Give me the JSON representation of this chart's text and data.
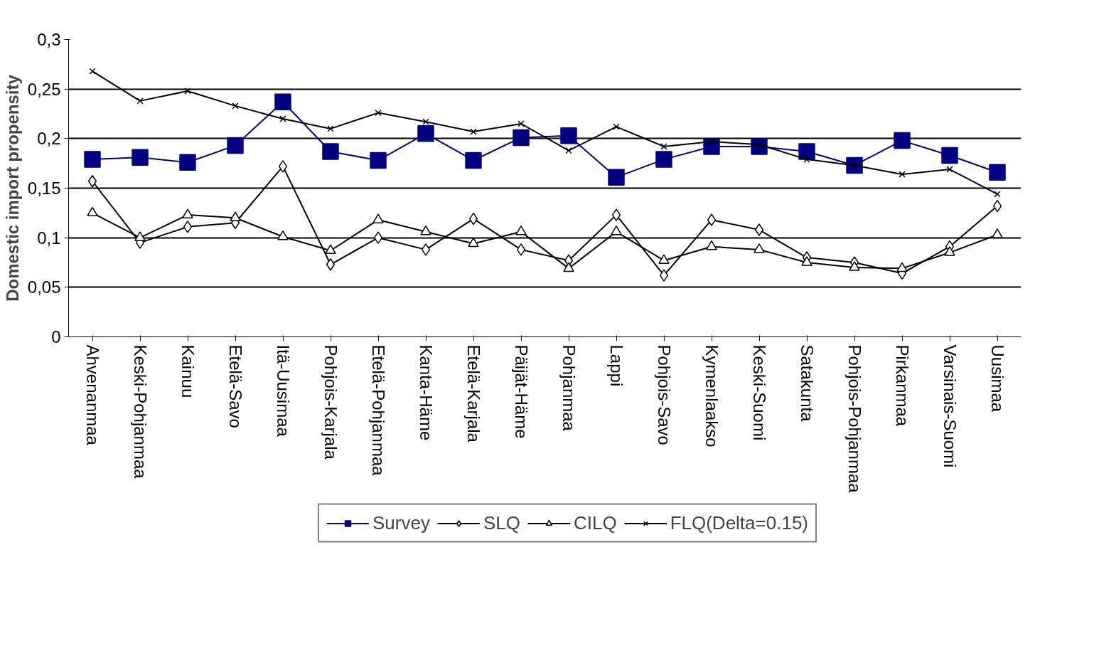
{
  "chart_data": {
    "type": "line",
    "ylabel": "Domestic import propensity",
    "categories": [
      "Ahvenanmaa",
      "Keski-Pohjanmaa",
      "Kainuu",
      "Etelä-Savo",
      "Itä-Uusimaa",
      "Pohjois-Karjala",
      "Etelä-Pohjanmaa",
      "Kanta-Häme",
      "Etelä-Karjala",
      "Päijät-Häme",
      "Pohjanmaa",
      "Lappi",
      "Pohjois-Savo",
      "Kymenlaakso",
      "Keski-Suomi",
      "Satakunta",
      "Pohjois-Pohjanmaa",
      "Pirkanmaa",
      "Varsinais-Suomi",
      "Uusimaa"
    ],
    "series": [
      {
        "name": "Survey",
        "color": "#000080",
        "marker": "square",
        "values": [
          0.179,
          0.181,
          0.176,
          0.193,
          0.237,
          0.187,
          0.178,
          0.205,
          0.178,
          0.201,
          0.203,
          0.161,
          0.179,
          0.192,
          0.192,
          0.187,
          0.173,
          0.198,
          0.183,
          0.166
        ]
      },
      {
        "name": "SLQ",
        "color": "#000000",
        "marker": "diamond",
        "values": [
          0.157,
          0.095,
          0.111,
          0.115,
          0.172,
          0.073,
          0.1,
          0.088,
          0.119,
          0.088,
          0.077,
          0.123,
          0.062,
          0.118,
          0.108,
          0.08,
          0.075,
          0.064,
          0.091,
          0.132
        ]
      },
      {
        "name": "CILQ",
        "color": "#000000",
        "marker": "triangle",
        "values": [
          0.125,
          0.1,
          0.123,
          0.12,
          0.101,
          0.087,
          0.118,
          0.106,
          0.094,
          0.106,
          0.069,
          0.106,
          0.077,
          0.091,
          0.088,
          0.075,
          0.07,
          0.069,
          0.085,
          0.103
        ]
      },
      {
        "name": "FLQ(Delta=0.15)",
        "color": "#000000",
        "marker": "cross",
        "values": [
          0.268,
          0.238,
          0.248,
          0.233,
          0.22,
          0.21,
          0.226,
          0.217,
          0.207,
          0.215,
          0.188,
          0.212,
          0.192,
          0.197,
          0.194,
          0.179,
          0.173,
          0.164,
          0.169,
          0.144
        ]
      }
    ],
    "ylim": [
      0,
      0.3
    ],
    "yticks": [
      {
        "value": 0,
        "label": "0"
      },
      {
        "value": 0.05,
        "label": "0,05"
      },
      {
        "value": 0.1,
        "label": "0,1"
      },
      {
        "value": 0.15,
        "label": "0,15"
      },
      {
        "value": 0.2,
        "label": "0,2"
      },
      {
        "value": 0.25,
        "label": "0,25"
      },
      {
        "value": 0.3,
        "label": "0,3"
      }
    ],
    "grid": "y",
    "legend": "bottom"
  }
}
